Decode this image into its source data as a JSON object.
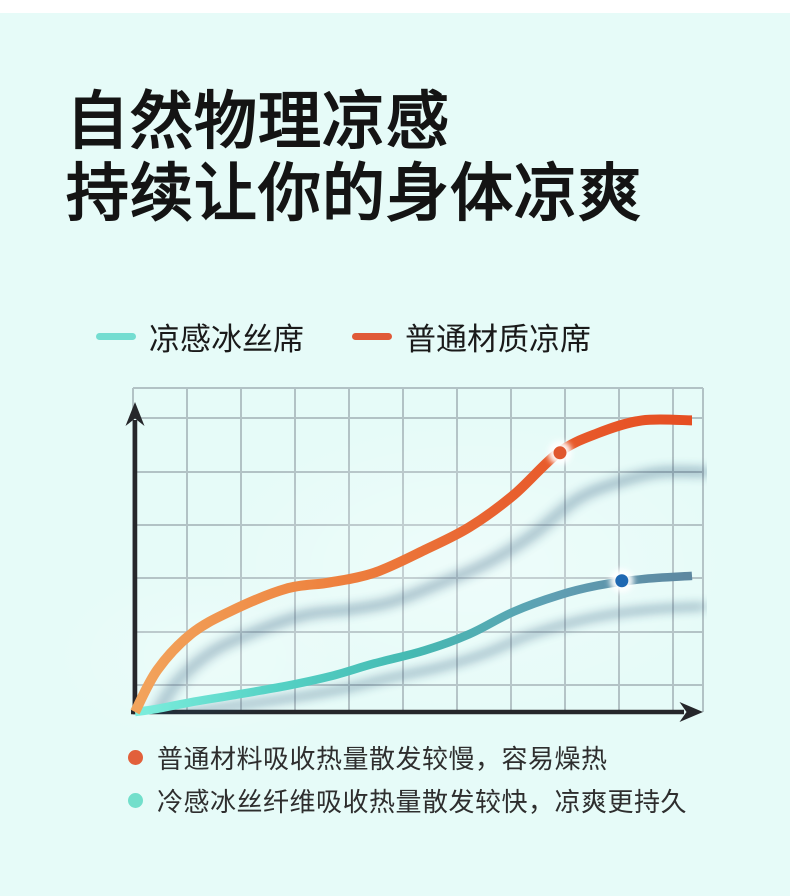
{
  "page": {
    "background_color": "#e6fbf8",
    "top_strip_color": "#ffffff"
  },
  "title": {
    "line1": "自然物理凉感",
    "line2": "持续让你的身体凉爽"
  },
  "legend": {
    "items": [
      {
        "label": "凉感冰丝席",
        "swatch_color": "#74ddd1"
      },
      {
        "label": "普通材质凉席",
        "swatch_color": "#e05a38"
      }
    ]
  },
  "notes": [
    {
      "dot_color": "#e2603b",
      "text": "普通材料吸收热量散发较慢，容易燥热"
    },
    {
      "dot_color": "#72dfcb",
      "text": "冷感冰丝纤维吸收热量散发较快，凉爽更持久"
    }
  ],
  "chart_data": {
    "type": "line",
    "title": "",
    "xlabel": "",
    "ylabel": "",
    "grid": true,
    "legend_position": "top",
    "x_axis": {
      "label": "",
      "ticks": [],
      "range": [
        0,
        100
      ],
      "unit": "time (unlabeled)"
    },
    "y_axis": {
      "label": "",
      "ticks": [],
      "range": [
        0,
        10
      ],
      "unit": "absorbed heat (unlabeled)"
    },
    "x": [
      0,
      4,
      10,
      17,
      27,
      35,
      43,
      52,
      60,
      68,
      76,
      83,
      91,
      100
    ],
    "series": [
      {
        "name": "普通材质凉席",
        "values": [
          0,
          1.3,
          2.4,
          3.1,
          3.8,
          4.0,
          4.3,
          5.0,
          5.7,
          6.7,
          8.0,
          8.6,
          9.0,
          9.0
        ],
        "stroke_width": 10,
        "gradient": [
          "#f2a45c",
          "#ee8440",
          "#e8602f",
          "#e64e22"
        ],
        "marker": {
          "x": 76.3,
          "value": 8.0,
          "color": "#e0572e"
        }
      },
      {
        "name": "凉感冰丝席",
        "values": [
          0,
          0.1,
          0.3,
          0.5,
          0.8,
          1.1,
          1.5,
          1.9,
          2.4,
          3.1,
          3.6,
          3.9,
          4.1,
          4.2
        ],
        "stroke_width": 8.5,
        "gradient": [
          "#7deedd",
          "#55d2c5",
          "#45b9b2",
          "#5f9fb3",
          "#5d87a0"
        ],
        "marker": {
          "x": 87.4,
          "value": 4.05,
          "color": "#1e68b2"
        }
      }
    ],
    "style": {
      "grid_color": "#a9b9bd",
      "axis_color": "#26272b",
      "shadow_color": "#1d4b70"
    }
  }
}
